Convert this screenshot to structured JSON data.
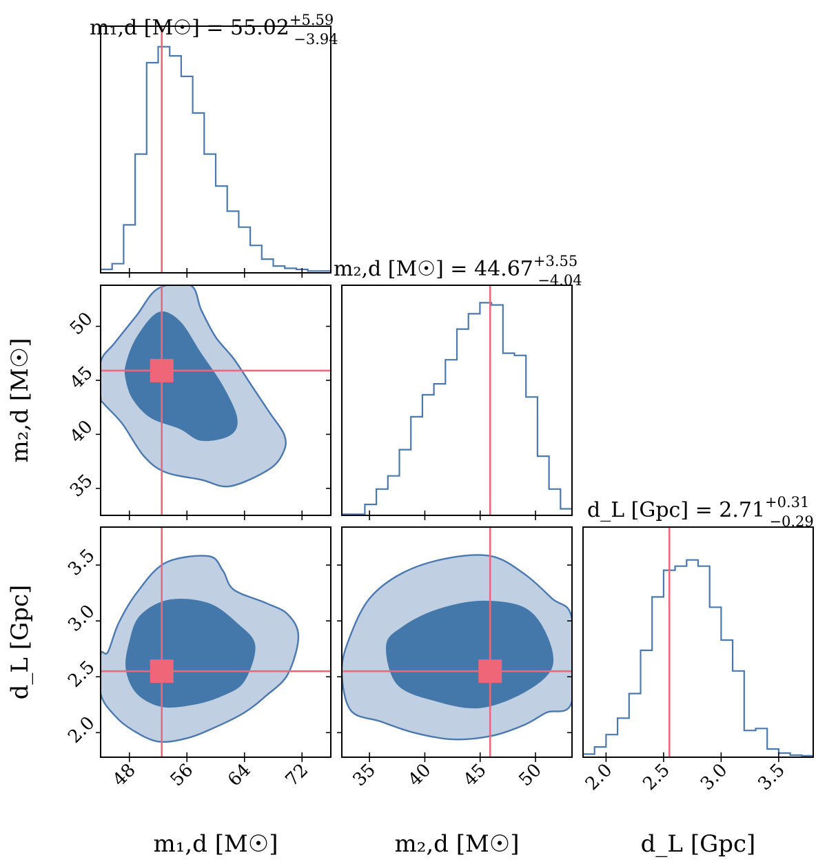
{
  "colors": {
    "hist": "#4a78b0",
    "contour_inner": "#4478aa",
    "contour_outer": "#c0d0e2",
    "contour_line": "#4a78b0",
    "truth": "#ee6677"
  },
  "truth": {
    "m1": 52.5,
    "m2": 45.9,
    "dL": 2.55
  },
  "chart_data": [
    {
      "type": "histogram",
      "panel": "m1-marginal",
      "title": {
        "main": "m₁,d [M☉] = 55.02",
        "up": "+5.59",
        "down": "−3.94"
      },
      "xlim": [
        44,
        76
      ],
      "bins": [
        44,
        45.6,
        47.2,
        48.8,
        50.4,
        52.0,
        53.6,
        55.2,
        56.8,
        58.4,
        60.0,
        61.6,
        63.2,
        64.8,
        66.4,
        68.0,
        69.6,
        71.2,
        72.8,
        74.4,
        76.0
      ],
      "counts": [
        0.015,
        0.04,
        0.21,
        0.52,
        0.92,
        0.99,
        0.95,
        0.86,
        0.7,
        0.52,
        0.38,
        0.27,
        0.2,
        0.12,
        0.06,
        0.03,
        0.02,
        0.015,
        0.008,
        0.008
      ]
    },
    {
      "type": "histogram",
      "panel": "m2-marginal",
      "title": {
        "main": "m₂,d [M☉] = 44.67",
        "up": "+3.55",
        "down": "−4.04"
      },
      "xlim": [
        32.5,
        53.3
      ],
      "bins": [
        32.5,
        33.54,
        34.58,
        35.62,
        36.66,
        37.7,
        38.74,
        39.78,
        40.82,
        41.86,
        42.9,
        43.94,
        44.98,
        46.02,
        47.06,
        48.1,
        49.14,
        50.18,
        51.22,
        52.26,
        53.3
      ],
      "counts": [
        0.005,
        0.005,
        0.05,
        0.12,
        0.18,
        0.3,
        0.45,
        0.55,
        0.6,
        0.71,
        0.85,
        0.92,
        0.97,
        0.96,
        0.74,
        0.73,
        0.54,
        0.27,
        0.12,
        0.03
      ]
    },
    {
      "type": "histogram",
      "panel": "dL-marginal",
      "title": {
        "main": "d_L [Gpc] = 2.71",
        "up": "+0.31",
        "down": "−0.29"
      },
      "xlim": [
        1.8,
        3.8
      ],
      "bins": [
        1.8,
        1.9,
        2.0,
        2.1,
        2.2,
        2.3,
        2.4,
        2.5,
        2.6,
        2.7,
        2.8,
        2.9,
        3.0,
        3.1,
        3.2,
        3.3,
        3.4,
        3.5,
        3.6,
        3.7,
        3.8
      ],
      "counts": [
        0.015,
        0.05,
        0.11,
        0.19,
        0.31,
        0.52,
        0.78,
        0.91,
        0.93,
        0.96,
        0.93,
        0.73,
        0.57,
        0.42,
        0.13,
        0.14,
        0.04,
        0.02,
        0.01,
        0.007
      ]
    },
    {
      "type": "contour",
      "panel": "m1-m2",
      "xlim": [
        44,
        76
      ],
      "ylim": [
        32.5,
        53.8
      ],
      "outer": [
        [
          44,
          43.5
        ],
        [
          44,
          46.7
        ],
        [
          46,
          48.5
        ],
        [
          49,
          51
        ],
        [
          52,
          53.5
        ],
        [
          56.5,
          53.8
        ],
        [
          58,
          51.5
        ],
        [
          60,
          49
        ],
        [
          62.5,
          47
        ],
        [
          65,
          44.5
        ],
        [
          67.5,
          42
        ],
        [
          69.5,
          40
        ],
        [
          69.5,
          38.5
        ],
        [
          67.5,
          36.8
        ],
        [
          62,
          35.2
        ],
        [
          58,
          35.8
        ],
        [
          53,
          36.5
        ],
        [
          50,
          38
        ],
        [
          47,
          41
        ],
        [
          44.5,
          42.8
        ]
      ],
      "inner": [
        [
          47.5,
          45
        ],
        [
          47.5,
          46.5
        ],
        [
          49,
          49
        ],
        [
          52,
          51.3
        ],
        [
          55,
          50.5
        ],
        [
          58,
          47.5
        ],
        [
          61,
          44.5
        ],
        [
          63,
          41.5
        ],
        [
          62,
          39.9
        ],
        [
          58,
          39.4
        ],
        [
          55,
          40.5
        ],
        [
          51,
          41.5
        ],
        [
          48.5,
          43.2
        ]
      ]
    },
    {
      "type": "contour",
      "panel": "m1-dL",
      "xlim": [
        44,
        76
      ],
      "ylim": [
        1.78,
        3.84
      ],
      "outer": [
        [
          44,
          2.35
        ],
        [
          46,
          2.15
        ],
        [
          48.5,
          2.02
        ],
        [
          52,
          1.92
        ],
        [
          56,
          1.95
        ],
        [
          60,
          2.05
        ],
        [
          64,
          2.18
        ],
        [
          67,
          2.33
        ],
        [
          70,
          2.52
        ],
        [
          71.5,
          2.86
        ],
        [
          70,
          3.06
        ],
        [
          67,
          3.16
        ],
        [
          62.5,
          3.28
        ],
        [
          61,
          3.45
        ],
        [
          59,
          3.58
        ],
        [
          53,
          3.52
        ],
        [
          49,
          3.25
        ],
        [
          46.5,
          2.98
        ],
        [
          45,
          2.72
        ],
        [
          44,
          2.7
        ]
      ],
      "inner": [
        [
          47.5,
          2.57
        ],
        [
          49,
          2.35
        ],
        [
          52.5,
          2.23
        ],
        [
          57,
          2.25
        ],
        [
          61,
          2.33
        ],
        [
          64,
          2.46
        ],
        [
          65.5,
          2.78
        ],
        [
          63,
          2.98
        ],
        [
          59,
          3.16
        ],
        [
          53.5,
          3.19
        ],
        [
          49.5,
          3.05
        ],
        [
          48,
          2.82
        ]
      ]
    },
    {
      "type": "contour",
      "panel": "m2-dL",
      "xlim": [
        32.5,
        53.3
      ],
      "ylim": [
        1.78,
        3.84
      ],
      "outer": [
        [
          32.5,
          2.55
        ],
        [
          33.3,
          2.2
        ],
        [
          36,
          2.1
        ],
        [
          39,
          2.0
        ],
        [
          42.5,
          1.94
        ],
        [
          46,
          1.97
        ],
        [
          49,
          2.07
        ],
        [
          51,
          2.18
        ],
        [
          53.3,
          2.28
        ],
        [
          53.3,
          3.02
        ],
        [
          51.5,
          3.2
        ],
        [
          49,
          3.42
        ],
        [
          46,
          3.58
        ],
        [
          42,
          3.56
        ],
        [
          38,
          3.43
        ],
        [
          35,
          3.2
        ],
        [
          33.2,
          2.85
        ]
      ],
      "inner": [
        [
          36.5,
          2.78
        ],
        [
          37.5,
          2.43
        ],
        [
          41,
          2.28
        ],
        [
          45,
          2.22
        ],
        [
          49,
          2.36
        ],
        [
          51.5,
          2.58
        ],
        [
          51,
          2.88
        ],
        [
          49,
          3.12
        ],
        [
          45,
          3.18
        ],
        [
          41,
          3.1
        ],
        [
          38,
          2.95
        ]
      ]
    }
  ],
  "axes": {
    "m1": {
      "label": "m₁,d [M☉]",
      "ticks": [
        "48",
        "56",
        "64",
        "72"
      ],
      "tick_values": [
        48,
        56,
        64,
        72
      ]
    },
    "m2_x": {
      "label": "m₂,d [M☉]",
      "ticks": [
        "35",
        "40",
        "45",
        "50"
      ],
      "tick_values": [
        35,
        40,
        45,
        50
      ]
    },
    "m2_y": {
      "label": "m₂,d [M☉]",
      "ticks": [
        "35",
        "40",
        "45",
        "50"
      ],
      "tick_values": [
        35,
        40,
        45,
        50
      ]
    },
    "dL_x": {
      "label": "d_L [Gpc]",
      "ticks": [
        "2.0",
        "2.5",
        "3.0",
        "3.5"
      ],
      "tick_values": [
        2.0,
        2.5,
        3.0,
        3.5
      ]
    },
    "dL_y": {
      "label": "d_L [Gpc]",
      "ticks": [
        "2.0",
        "2.5",
        "3.0",
        "3.5"
      ],
      "tick_values": [
        2.0,
        2.5,
        3.0,
        3.5
      ]
    }
  }
}
